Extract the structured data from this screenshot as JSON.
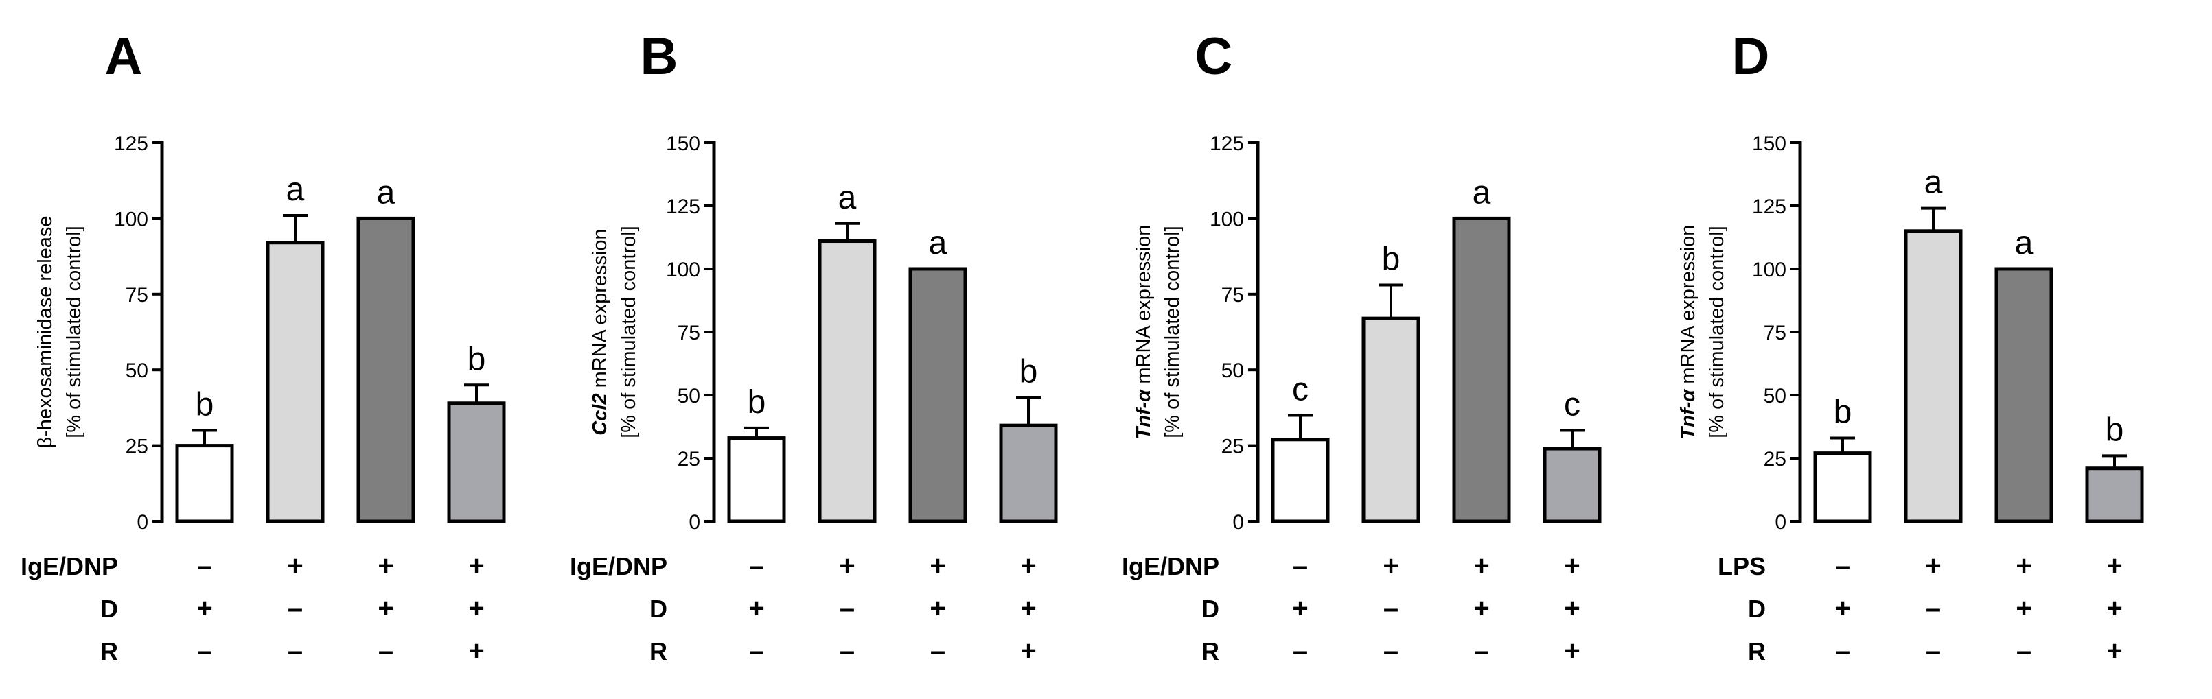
{
  "chart_data": [
    {
      "type": "bar",
      "panel": "A",
      "ylabel_lines": [
        [
          {
            "text": "β-hexosaminidase release",
            "italic": false
          }
        ],
        [
          {
            "text": "[% of stimulated control]",
            "italic": false
          }
        ]
      ],
      "ylim": [
        0,
        125
      ],
      "yticks": [
        0,
        25,
        50,
        75,
        100,
        125
      ],
      "values": [
        25,
        92,
        100,
        39
      ],
      "errors": [
        5,
        9,
        0,
        6
      ],
      "significance": [
        "b",
        "a",
        "a",
        "b"
      ],
      "condition_rows": [
        {
          "label": "IgE/DNP",
          "values": [
            "–",
            "+",
            "+",
            "+"
          ]
        },
        {
          "label": "D",
          "values": [
            "+",
            "–",
            "+",
            "+"
          ]
        },
        {
          "label": "R",
          "values": [
            "–",
            "–",
            "–",
            "+"
          ]
        }
      ]
    },
    {
      "type": "bar",
      "panel": "B",
      "ylabel_lines": [
        [
          {
            "text": "Ccl2",
            "italic": true
          },
          {
            "text": " mRNA expression",
            "italic": false
          }
        ],
        [
          {
            "text": "[% of stimulated control]",
            "italic": false
          }
        ]
      ],
      "ylim": [
        0,
        150
      ],
      "yticks": [
        0,
        25,
        50,
        75,
        100,
        125,
        150
      ],
      "values": [
        33,
        111,
        100,
        38
      ],
      "errors": [
        4,
        7,
        0,
        11
      ],
      "significance": [
        "b",
        "a",
        "a",
        "b"
      ],
      "condition_rows": [
        {
          "label": "IgE/DNP",
          "values": [
            "–",
            "+",
            "+",
            "+"
          ]
        },
        {
          "label": "D",
          "values": [
            "+",
            "–",
            "+",
            "+"
          ]
        },
        {
          "label": "R",
          "values": [
            "–",
            "–",
            "–",
            "+"
          ]
        }
      ]
    },
    {
      "type": "bar",
      "panel": "C",
      "ylabel_lines": [
        [
          {
            "text": "Tnf-α",
            "italic": true
          },
          {
            "text": " mRNA expression",
            "italic": false
          }
        ],
        [
          {
            "text": "[% of stimulated control]",
            "italic": false
          }
        ]
      ],
      "ylim": [
        0,
        125
      ],
      "yticks": [
        0,
        25,
        50,
        75,
        100,
        125
      ],
      "values": [
        27,
        67,
        100,
        24
      ],
      "errors": [
        8,
        11,
        0,
        6
      ],
      "significance": [
        "c",
        "b",
        "a",
        "c"
      ],
      "condition_rows": [
        {
          "label": "IgE/DNP",
          "values": [
            "–",
            "+",
            "+",
            "+"
          ]
        },
        {
          "label": "D",
          "values": [
            "+",
            "–",
            "+",
            "+"
          ]
        },
        {
          "label": "R",
          "values": [
            "–",
            "–",
            "–",
            "+"
          ]
        }
      ]
    },
    {
      "type": "bar",
      "panel": "D",
      "ylabel_lines": [
        [
          {
            "text": "Tnf-α",
            "italic": true
          },
          {
            "text": " mRNA expression",
            "italic": false
          }
        ],
        [
          {
            "text": "[% of stimulated control]",
            "italic": false
          }
        ]
      ],
      "ylim": [
        0,
        150
      ],
      "yticks": [
        0,
        25,
        50,
        75,
        100,
        125,
        150
      ],
      "values": [
        27,
        115,
        100,
        21
      ],
      "errors": [
        6,
        9,
        0,
        5
      ],
      "significance": [
        "b",
        "a",
        "a",
        "b"
      ],
      "condition_rows": [
        {
          "label": "LPS",
          "values": [
            "–",
            "+",
            "+",
            "+"
          ]
        },
        {
          "label": "D",
          "values": [
            "+",
            "–",
            "+",
            "+"
          ]
        },
        {
          "label": "R",
          "values": [
            "–",
            "–",
            "–",
            "+"
          ]
        }
      ]
    }
  ],
  "colors": {
    "bars": [
      "#ffffff",
      "#d9d9d9",
      "#7f7f7f",
      "#a6a6ad"
    ],
    "axis": "#000000"
  }
}
